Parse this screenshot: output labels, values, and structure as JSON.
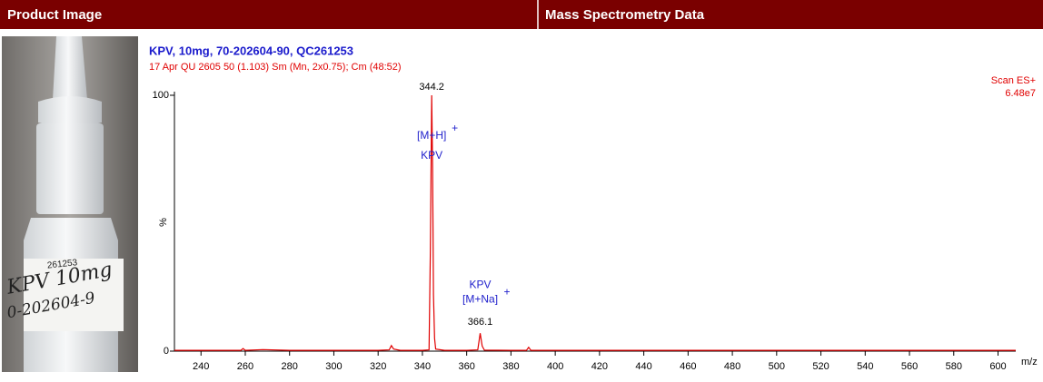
{
  "header": {
    "left": "Product Image",
    "right": "Mass Spectrometry Data"
  },
  "product_image": {
    "labels": [
      "261253",
      "KPV 10mg",
      "0-202604-9"
    ]
  },
  "chart_data": {
    "type": "line",
    "title": "KPV, 10mg, 70-202604-90, QC261253",
    "subtitle": "17 Apr QU 2605  50 (1.103) Sm (Mn, 2x0.75); Cm (48:52)",
    "scan_mode": "Scan ES+",
    "intensity": "6.48e7",
    "y_label": "%",
    "x_label": "m/z",
    "color": "#e00000",
    "x": [
      228,
      240,
      258,
      259,
      260,
      268,
      280,
      300,
      320,
      325,
      326,
      327,
      330,
      340,
      343,
      343.6,
      344.2,
      344.6,
      345,
      345.5,
      346,
      350,
      360,
      365,
      366.1,
      367,
      368,
      380,
      387,
      388,
      389,
      400,
      450,
      500,
      550,
      600,
      608
    ],
    "values": [
      0.3,
      0.3,
      0.3,
      1,
      0.3,
      0.6,
      0.3,
      0.3,
      0.3,
      0.5,
      2.2,
      0.8,
      0.3,
      0.3,
      0.5,
      40,
      100,
      72,
      22,
      5,
      0.8,
      0.3,
      0.3,
      0.5,
      7,
      2,
      0.4,
      0.3,
      0.3,
      1.5,
      0.3,
      0.3,
      0.3,
      0.3,
      0.3,
      0.3,
      0.3
    ],
    "xlim": [
      228,
      608
    ],
    "ylim": [
      0,
      100
    ],
    "xticks": [
      240,
      260,
      280,
      300,
      320,
      340,
      360,
      380,
      400,
      420,
      440,
      460,
      480,
      500,
      520,
      540,
      560,
      580,
      600
    ],
    "yticks": [
      0,
      100
    ],
    "peaks": [
      {
        "mz": 344.2,
        "labels": [
          "[M+H]",
          "KPV"
        ],
        "charge": "+"
      },
      {
        "mz": 366.1,
        "labels": [
          "KPV",
          "[M+Na]"
        ],
        "charge": "+"
      }
    ]
  }
}
